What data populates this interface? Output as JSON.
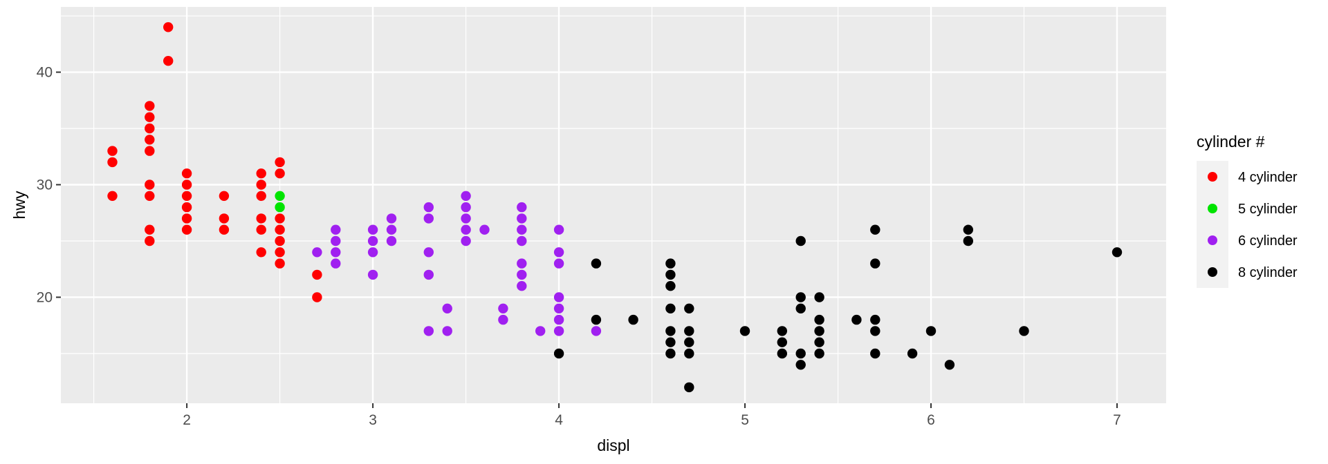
{
  "figure": {
    "background": "#FFFFFF",
    "panel_background": "#EBEBEB",
    "gridline_color": "#FFFFFF",
    "legend_key_background": "#F2F2F2",
    "tick_mark_color": "#333333",
    "tick_label_color": "#4D4D4D"
  },
  "chart_data": {
    "type": "scatter",
    "title": "",
    "xlabel": "displ",
    "ylabel": "hwy",
    "legend_title": "cylinder #",
    "legend_position": "right",
    "grid": true,
    "xlim": [
      1.323,
      7.264
    ],
    "ylim": [
      10.58,
      45.8
    ],
    "x_ticks": [
      2,
      3,
      4,
      5,
      6,
      7
    ],
    "y_ticks": [
      20,
      30,
      40
    ],
    "x_minor_gridlines": [
      1.5,
      2.5,
      3.5,
      4.5,
      5.5,
      6.5
    ],
    "y_minor_gridlines": [
      15,
      25,
      35,
      45
    ],
    "series": [
      {
        "name": "4 cylinder",
        "color": "#FF0000",
        "points": [
          [
            1.6,
            33
          ],
          [
            1.6,
            32
          ],
          [
            1.6,
            29
          ],
          [
            1.8,
            37
          ],
          [
            1.8,
            36
          ],
          [
            1.8,
            35
          ],
          [
            1.8,
            34
          ],
          [
            1.8,
            33
          ],
          [
            1.8,
            30
          ],
          [
            1.8,
            29
          ],
          [
            1.8,
            26
          ],
          [
            1.8,
            25
          ],
          [
            1.9,
            44
          ],
          [
            1.9,
            41
          ],
          [
            2.0,
            31
          ],
          [
            2.0,
            30
          ],
          [
            2.0,
            29
          ],
          [
            2.0,
            28
          ],
          [
            2.0,
            27
          ],
          [
            2.0,
            26
          ],
          [
            2.2,
            29
          ],
          [
            2.2,
            27
          ],
          [
            2.2,
            26
          ],
          [
            2.4,
            31
          ],
          [
            2.4,
            30
          ],
          [
            2.4,
            29
          ],
          [
            2.4,
            27
          ],
          [
            2.4,
            26
          ],
          [
            2.4,
            24
          ],
          [
            2.5,
            32
          ],
          [
            2.5,
            31
          ],
          [
            2.5,
            27
          ],
          [
            2.5,
            26
          ],
          [
            2.5,
            25
          ],
          [
            2.5,
            24
          ],
          [
            2.5,
            23
          ],
          [
            2.7,
            22
          ],
          [
            2.7,
            20
          ]
        ]
      },
      {
        "name": "5 cylinder",
        "color": "#00E400",
        "points": [
          [
            2.5,
            29
          ],
          [
            2.5,
            28
          ]
        ]
      },
      {
        "name": "6 cylinder",
        "color": "#A020F0",
        "points": [
          [
            2.7,
            24
          ],
          [
            2.8,
            26
          ],
          [
            2.8,
            25
          ],
          [
            2.8,
            24
          ],
          [
            2.8,
            23
          ],
          [
            3.0,
            26
          ],
          [
            3.0,
            25
          ],
          [
            3.0,
            24
          ],
          [
            3.0,
            22
          ],
          [
            3.1,
            27
          ],
          [
            3.1,
            26
          ],
          [
            3.1,
            25
          ],
          [
            3.3,
            28
          ],
          [
            3.3,
            27
          ],
          [
            3.3,
            24
          ],
          [
            3.3,
            22
          ],
          [
            3.3,
            17
          ],
          [
            3.4,
            19
          ],
          [
            3.4,
            17
          ],
          [
            3.5,
            29
          ],
          [
            3.5,
            28
          ],
          [
            3.5,
            27
          ],
          [
            3.5,
            26
          ],
          [
            3.5,
            25
          ],
          [
            3.6,
            26
          ],
          [
            3.7,
            19
          ],
          [
            3.7,
            18
          ],
          [
            3.8,
            28
          ],
          [
            3.8,
            27
          ],
          [
            3.8,
            26
          ],
          [
            3.8,
            25
          ],
          [
            3.8,
            23
          ],
          [
            3.8,
            22
          ],
          [
            3.8,
            21
          ],
          [
            3.9,
            17
          ],
          [
            4.0,
            26
          ],
          [
            4.0,
            24
          ],
          [
            4.0,
            23
          ],
          [
            4.0,
            20
          ],
          [
            4.0,
            19
          ],
          [
            4.0,
            18
          ],
          [
            4.0,
            17
          ],
          [
            4.2,
            17
          ]
        ]
      },
      {
        "name": "8 cylinder",
        "color": "#000000",
        "points": [
          [
            4.0,
            15
          ],
          [
            4.2,
            23
          ],
          [
            4.2,
            18
          ],
          [
            4.4,
            18
          ],
          [
            4.6,
            23
          ],
          [
            4.6,
            22
          ],
          [
            4.6,
            21
          ],
          [
            4.6,
            19
          ],
          [
            4.6,
            17
          ],
          [
            4.6,
            16
          ],
          [
            4.6,
            15
          ],
          [
            4.7,
            19
          ],
          [
            4.7,
            17
          ],
          [
            4.7,
            16
          ],
          [
            4.7,
            15
          ],
          [
            4.7,
            12
          ],
          [
            5.0,
            17
          ],
          [
            5.2,
            17
          ],
          [
            5.2,
            16
          ],
          [
            5.2,
            15
          ],
          [
            5.3,
            25
          ],
          [
            5.3,
            20
          ],
          [
            5.3,
            19
          ],
          [
            5.3,
            15
          ],
          [
            5.3,
            14
          ],
          [
            5.4,
            20
          ],
          [
            5.4,
            18
          ],
          [
            5.4,
            17
          ],
          [
            5.4,
            16
          ],
          [
            5.4,
            15
          ],
          [
            5.6,
            18
          ],
          [
            5.7,
            26
          ],
          [
            5.7,
            23
          ],
          [
            5.7,
            18
          ],
          [
            5.7,
            17
          ],
          [
            5.7,
            15
          ],
          [
            5.9,
            15
          ],
          [
            6.0,
            17
          ],
          [
            6.1,
            14
          ],
          [
            6.2,
            26
          ],
          [
            6.2,
            25
          ],
          [
            6.5,
            17
          ],
          [
            7.0,
            24
          ]
        ]
      }
    ]
  }
}
